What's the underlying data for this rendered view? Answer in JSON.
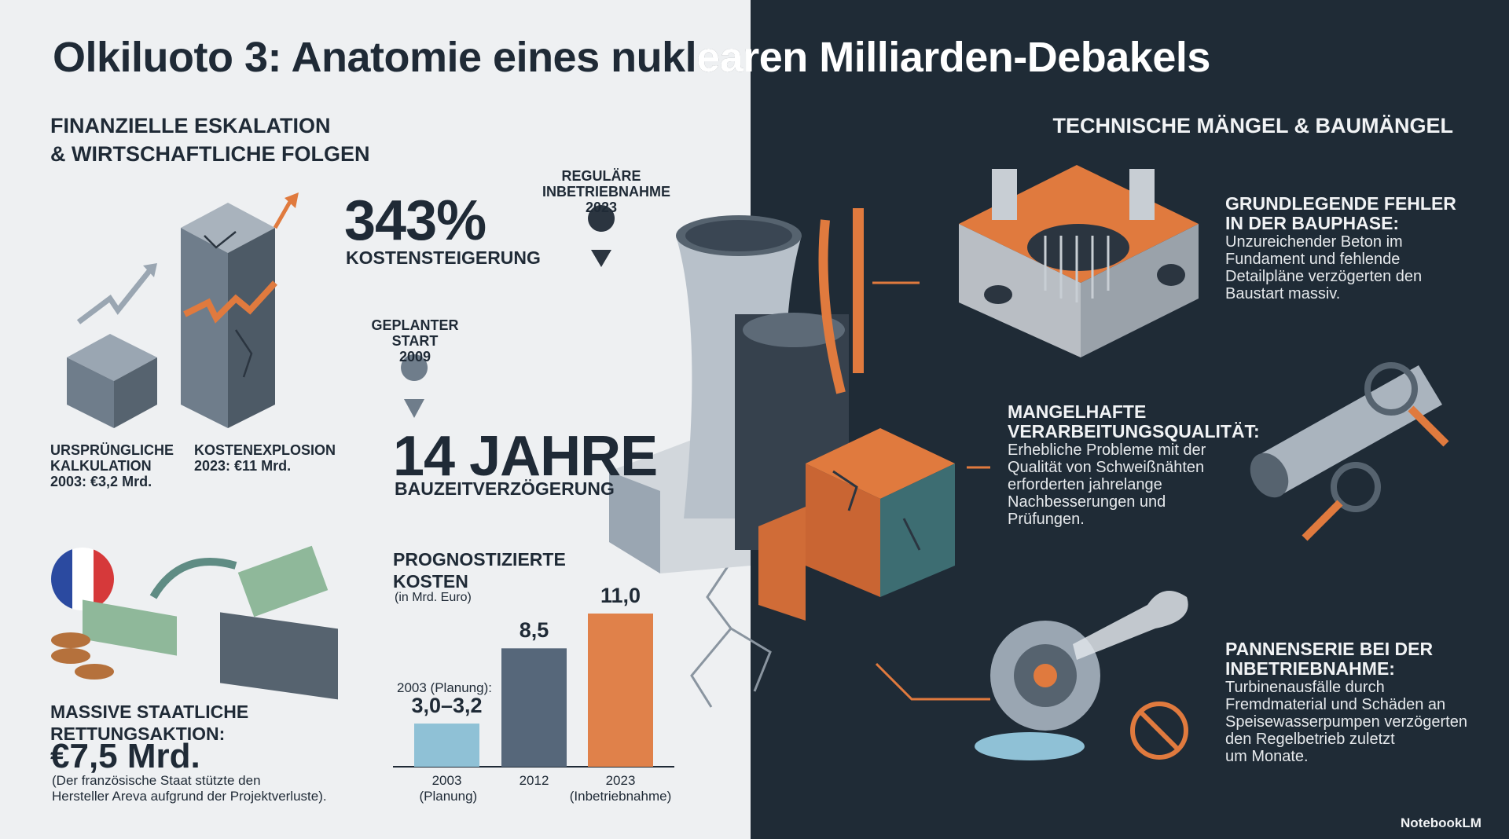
{
  "header": {
    "title": "Olkiluoto 3: Anatomie eines nuklearen Milliarden-Debakels"
  },
  "left": {
    "heading": [
      "FINANZIELLE ESKALATION",
      "& WIRTSCHAFTLICHE FOLGEN"
    ],
    "increase": {
      "value": "343%",
      "label": "KOSTENSTEIGERUNG"
    },
    "original": [
      "URSPRÜNGLICHE",
      "KALKULATION",
      "2003: €3,2 Mrd."
    ],
    "explosion": [
      "KOSTENEXPLOSION",
      "2023: €11 Mrd."
    ],
    "regular_start": [
      "REGULÄRE",
      "INBETRIEBNAHME",
      "2023"
    ],
    "planned_start": [
      "GEPLANTER",
      "START",
      "2009"
    ],
    "delay": {
      "value": "14 JAHRE",
      "label": "BAUZEITVERZÖGERUNG"
    },
    "bailout": {
      "heading": [
        "MASSIVE STAATLICHE",
        "RETTUNGSAKTION:"
      ],
      "amount": "€7,5 Mrd.",
      "note": [
        "(Der französische Staat stützte den",
        "Hersteller Areva aufgrund der Projektverluste)."
      ]
    }
  },
  "chart_data": {
    "type": "bar",
    "title": "PROGNOSTIZIERTE KOSTEN",
    "subtitle": "(in Mrd. Euro)",
    "annotation": "2003 (Planung):",
    "categories": [
      "2003 (Planung)",
      "2012",
      "2023 (Inbetriebnahme)"
    ],
    "values": [
      3.1,
      8.5,
      11.0
    ],
    "value_labels": [
      "3,0–3,2",
      "8,5",
      "11,0"
    ],
    "colors": [
      "#8fc1d6",
      "#56677a",
      "#e0814a"
    ]
  },
  "right": {
    "heading": "TECHNISCHE MÄNGEL & BAUMÄNGEL",
    "sections": [
      {
        "heading": [
          "GRUNDLEGENDE FEHLER",
          "IN DER BAUPHASE:"
        ],
        "body": [
          "Unzureichender Beton im",
          "Fundament und fehlende",
          "Detailpläne verzögerten den",
          "Baustart massiv."
        ]
      },
      {
        "heading": [
          "MANGELHAFTE",
          "VERARBEITUNGSQUALITÄT:"
        ],
        "body": [
          "Erhebliche Probleme mit der",
          "Qualität von Schweißnähten",
          "erforderten jahrelange",
          "Nachbesserungen und",
          "Prüfungen."
        ]
      },
      {
        "heading": [
          "PANNENSERIE BEI DER",
          "INBETRIEBNAHME:"
        ],
        "body": [
          "Turbinenausfälle durch",
          "Fremdmaterial und Schäden an",
          "Speisewasserpumpen verzögerten",
          "den Regelbetrieb zuletzt",
          "um Monate."
        ]
      }
    ]
  },
  "footer": {
    "brand": "NotebookLM"
  }
}
